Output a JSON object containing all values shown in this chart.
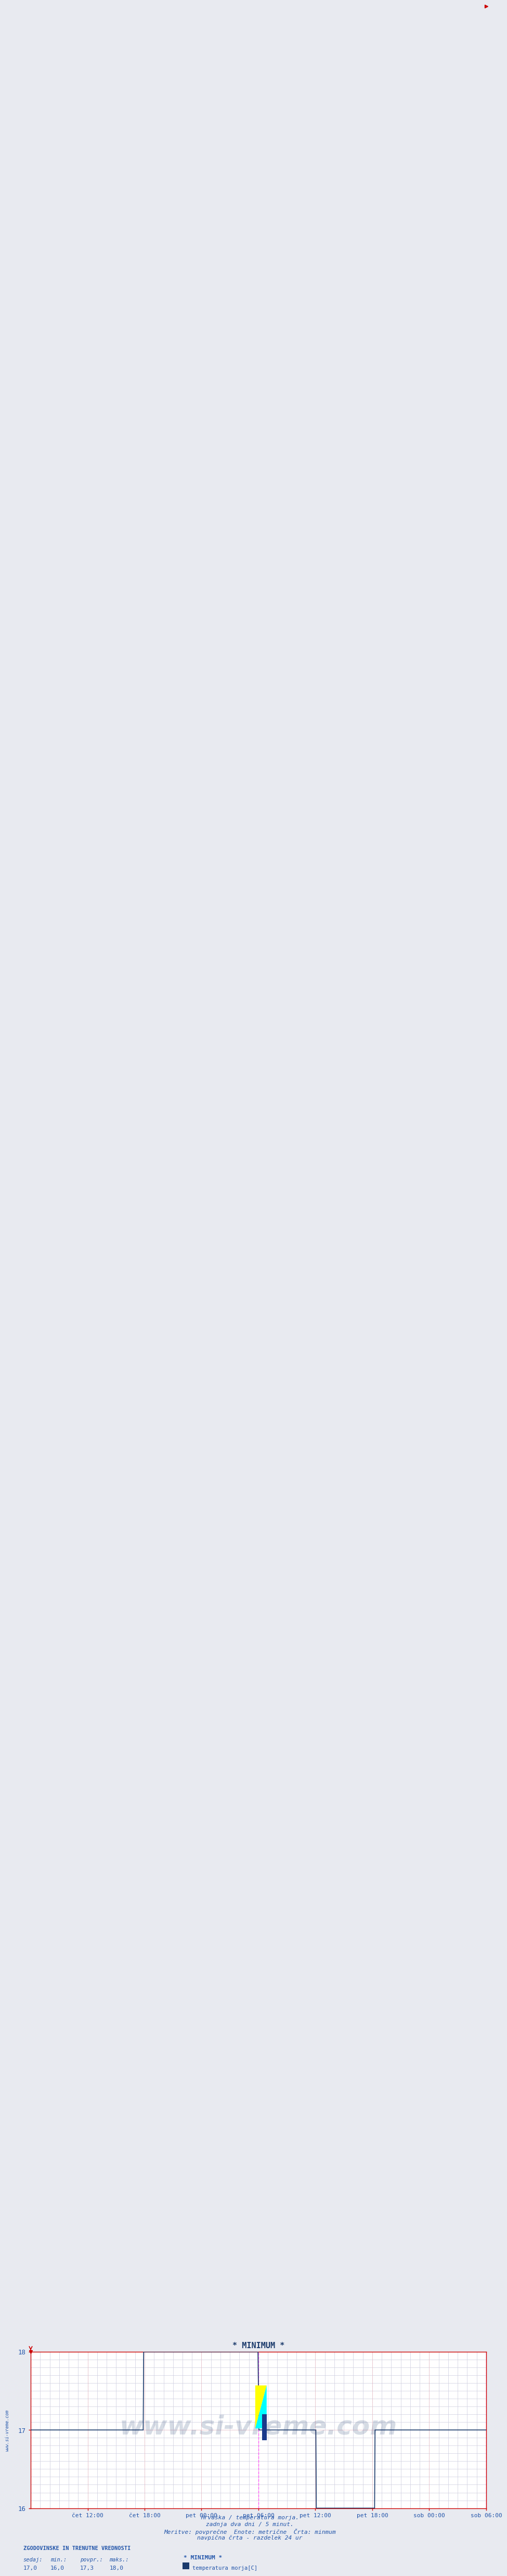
{
  "title": "* MINIMUM *",
  "background_color": "#e8eaf0",
  "plot_bg_color": "#ffffff",
  "line_color": "#1a3a6b",
  "line_width": 1.2,
  "ylim": [
    16,
    18
  ],
  "yticks": [
    16,
    17,
    18
  ],
  "xlabel_texts": [
    "čet 12:00",
    "čet 18:00",
    "pet 00:00",
    "pet 06:00",
    "pet 12:00",
    "pet 18:00",
    "sob 00:00",
    "sob 06:00"
  ],
  "x_tick_positions": [
    0.125,
    0.25,
    0.375,
    0.5,
    0.625,
    0.75,
    0.875,
    1.0
  ],
  "grid_color_major_h": "#ffaaaa",
  "grid_color_major_v": "#ffaaaa",
  "grid_color_minor": "#ccccdd",
  "vline_color": "#ff44ff",
  "vline_positions": [
    0.5,
    1.0
  ],
  "title_color": "#1a3a6b",
  "axis_color": "#cc0000",
  "watermark": "www.si-vreme.com",
  "watermark_color": "#1a3a6b",
  "watermark_alpha": 0.18,
  "side_label": "www.si-vreme.com",
  "bottom_text1": "Hrvaška / temperatura morja.",
  "bottom_text2": "zadnja dva dni / 5 minut.",
  "bottom_text3": "Meritve: povprečne  Enote: metrične  Črta: minmum",
  "bottom_text4": "navpična črta - razdelek 24 ur",
  "legend_title": "ZGODOVINSKE IN TRENUTNE VREDNOSTI",
  "legend_headers": [
    "sedaj:",
    "min.:",
    "povpr.:",
    "maks.:"
  ],
  "legend_values": [
    "17,0",
    "16,0",
    "17,3",
    "18,0"
  ],
  "legend_series_label": "* MINIMUM *",
  "legend_series_sublabel": "temperatura morja[C]",
  "legend_square_color": "#1a3a6b",
  "data_x": [
    0.0,
    0.247,
    0.248,
    0.499,
    0.501,
    0.626,
    0.627,
    0.735,
    0.755,
    0.756,
    0.758,
    0.775,
    1.0
  ],
  "data_y": [
    17.0,
    17.0,
    18.0,
    18.0,
    17.0,
    17.0,
    16.0,
    16.0,
    16.0,
    17.0,
    17.0,
    17.0,
    17.0
  ],
  "text_color": "#2255aa",
  "font_mono": true
}
